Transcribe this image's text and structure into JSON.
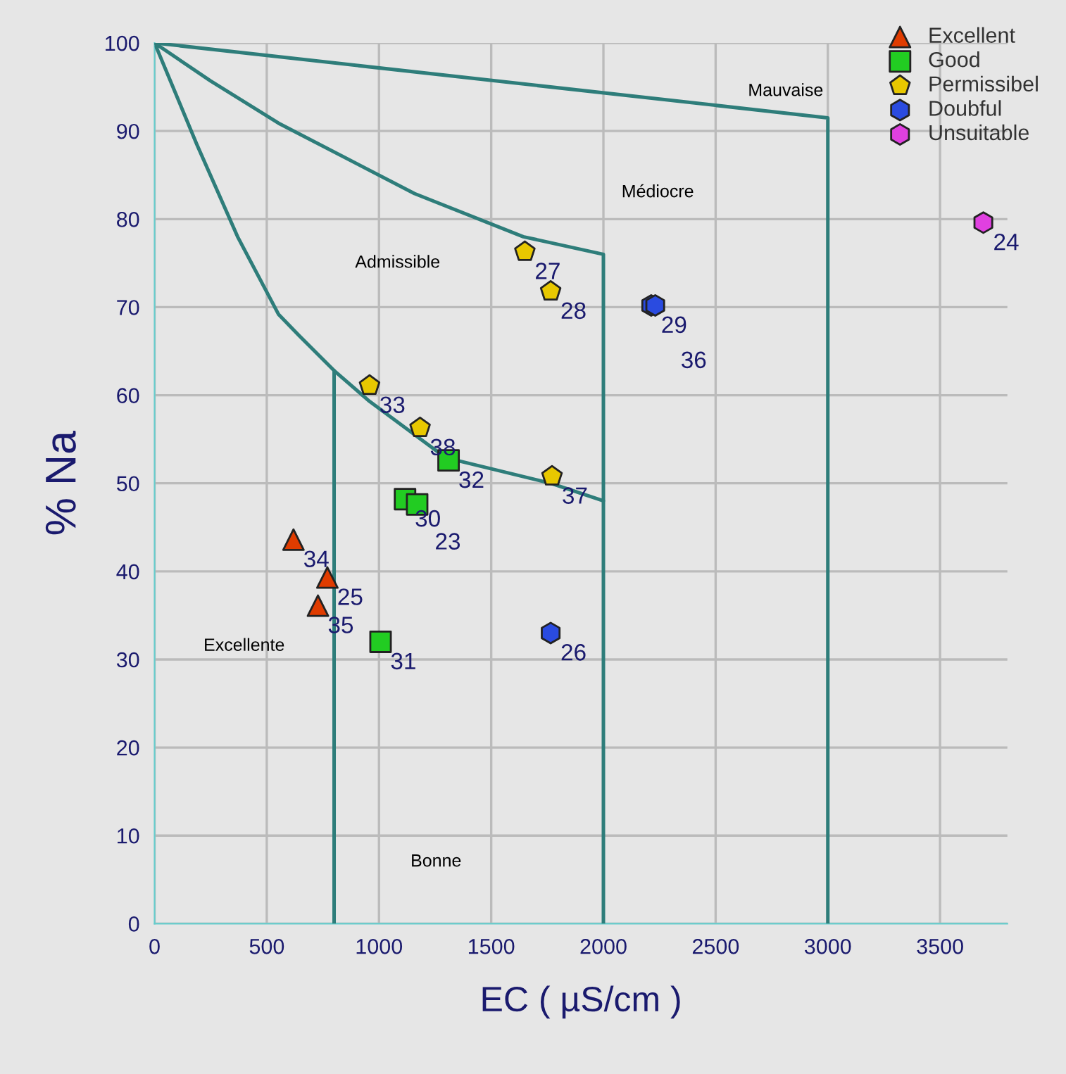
{
  "chart_data": {
    "type": "scatter",
    "xlabel": "EC ( µS/cm )",
    "ylabel": "% Na",
    "xlim": [
      0,
      3800
    ],
    "ylim": [
      0,
      100
    ],
    "xticks": [
      0,
      500,
      1000,
      1500,
      2000,
      2500,
      3000,
      3500
    ],
    "yticks": [
      0,
      10,
      20,
      30,
      40,
      50,
      60,
      70,
      80,
      90,
      100
    ],
    "grid": true,
    "legend": "top right",
    "series": [
      {
        "name": "Excellent",
        "color": "#e03c00",
        "marker": "triangle",
        "x": [
          619,
          770,
          728
        ],
        "values": [
          43.6,
          39.3,
          36.1
        ]
      },
      {
        "name": "Good",
        "color": "#22cc22",
        "marker": "square",
        "x": [
          1007,
          1116,
          1170,
          1310
        ],
        "values": [
          32.0,
          48.2,
          47.6,
          52.6
        ]
      },
      {
        "name": "Permissibel",
        "color": "#e8c800",
        "x": [
          958,
          1183,
          1771,
          1650,
          1765
        ],
        "values": [
          61.1,
          56.3,
          50.8,
          76.3,
          71.8
        ]
      },
      {
        "name": "Doubful",
        "color": "#2a4be0",
        "x": [
          2213,
          2231,
          1765
        ],
        "values": [
          70.2,
          70.2,
          33.0
        ]
      },
      {
        "name": "Unsuitable",
        "color": "#e040e0",
        "x": [
          3693
        ],
        "values": [
          79.6
        ]
      },
      {
        "type": "line",
        "color": "#2e7d7a",
        "x": [
          0,
          188,
          370,
          552,
          643,
          800,
          958,
          1298,
          1765,
          2000
        ],
        "values": [
          100,
          88.5,
          78,
          69.2,
          66.8,
          62.8,
          59.3,
          52.9,
          50,
          48
        ]
      },
      {
        "type": "line",
        "color": "#2e7d7a",
        "x": [
          0,
          249,
          552,
          1158,
          1643,
          2000,
          2000
        ],
        "values": [
          100,
          95.7,
          90.9,
          82.9,
          78,
          76,
          0
        ]
      },
      {
        "type": "line",
        "color": "#2e7d7a",
        "x": [
          0,
          3000,
          3000
        ],
        "values": [
          100,
          91.5,
          0
        ]
      },
      {
        "type": "line",
        "color": "#2e7d7a",
        "x": [
          800,
          800
        ],
        "values": [
          0,
          62.8
        ]
      }
    ],
    "annotations": [
      {
        "text": "34",
        "x": 619,
        "y": 43.6
      },
      {
        "text": "25",
        "x": 770,
        "y": 39.3
      },
      {
        "text": "35",
        "x": 728,
        "y": 36.1
      },
      {
        "text": "31",
        "x": 1007,
        "y": 32.0
      },
      {
        "text": "30",
        "x": 1116,
        "y": 48.2
      },
      {
        "text": "23",
        "x": 1170,
        "y": 47.6
      },
      {
        "text": "32",
        "x": 1310,
        "y": 52.6
      },
      {
        "text": "33",
        "x": 958,
        "y": 61.1
      },
      {
        "text": "38",
        "x": 1183,
        "y": 56.3
      },
      {
        "text": "37",
        "x": 1771,
        "y": 50.8
      },
      {
        "text": "27",
        "x": 1650,
        "y": 76.3
      },
      {
        "text": "28",
        "x": 1765,
        "y": 71.8
      },
      {
        "text": "29",
        "x": 2213,
        "y": 70.2
      },
      {
        "text": "36",
        "x": 2231,
        "y": 70.2
      },
      {
        "text": "26",
        "x": 1765,
        "y": 33.0
      },
      {
        "text": "24",
        "x": 3693,
        "y": 79.6
      },
      "Excellente",
      "Bonne",
      "Admissible",
      "Médiocre",
      "Mauvaise"
    ]
  }
}
